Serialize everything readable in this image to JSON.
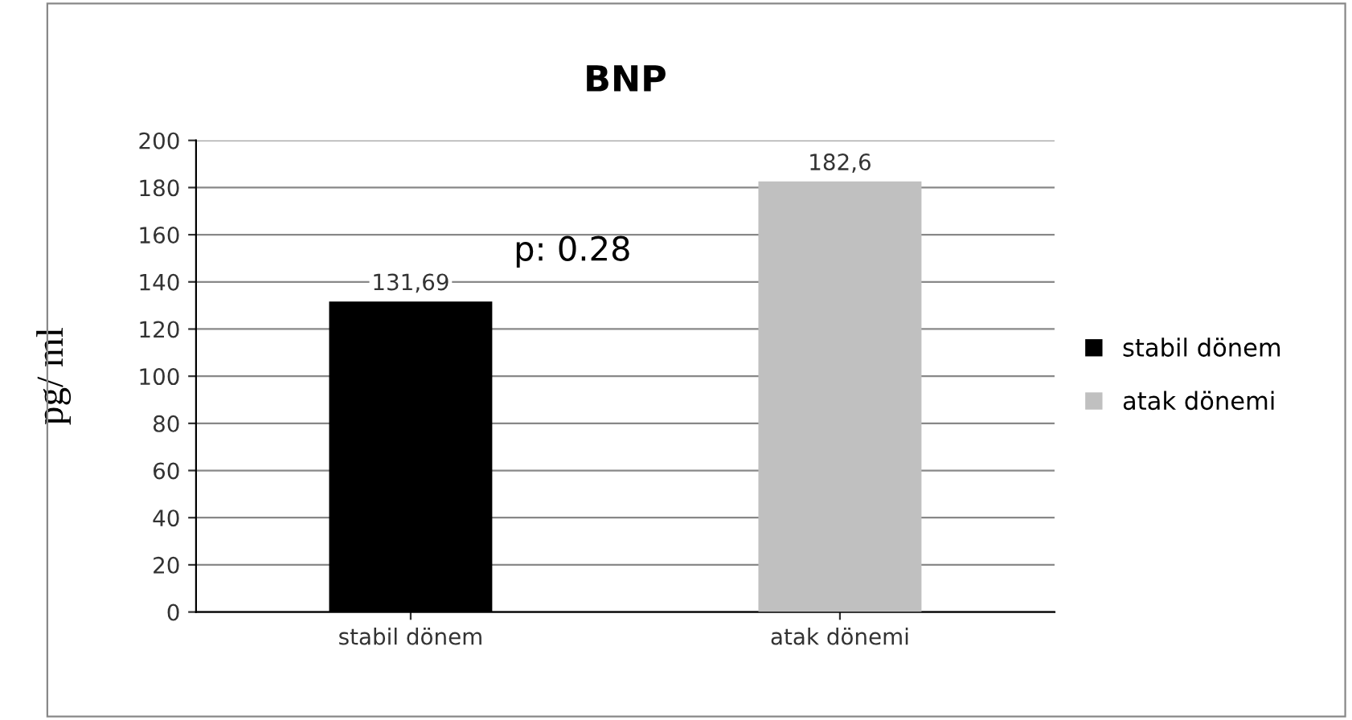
{
  "chart_data": {
    "type": "bar",
    "title": "BNP",
    "ylabel": "pg/ ml",
    "categories": [
      "stabil dönem",
      "atak dönemi"
    ],
    "series": [
      {
        "name": "stabil dönem",
        "color": "#000000",
        "values": [
          131.69,
          null
        ],
        "value_labels": [
          "131,69",
          null
        ]
      },
      {
        "name": "atak dönemi",
        "color": "#c0c0c0",
        "values": [
          null,
          182.6
        ],
        "value_labels": [
          null,
          "182,6"
        ]
      }
    ],
    "annotations": [
      "p: 0.28"
    ],
    "ylim": [
      0,
      200
    ],
    "yticks": [
      0,
      20,
      40,
      60,
      80,
      100,
      120,
      140,
      160,
      180,
      200
    ],
    "grid": "y",
    "legend": "right"
  }
}
